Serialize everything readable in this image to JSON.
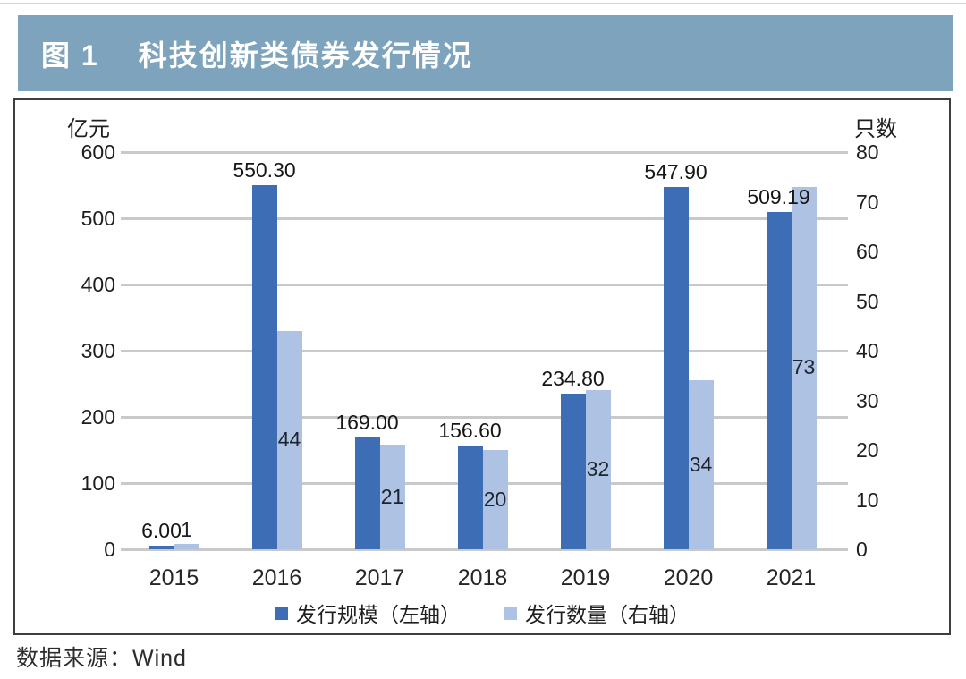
{
  "header": {
    "figure_label": "图 1",
    "title": "科技创新类债券发行情况",
    "bg_color": "#7ea3bd"
  },
  "chart_data": {
    "type": "bar",
    "title": "科技创新类债券发行情况",
    "categories": [
      "2015",
      "2016",
      "2017",
      "2018",
      "2019",
      "2020",
      "2021"
    ],
    "series": [
      {
        "name": "发行规模（左轴）",
        "axis": "left",
        "color": "#3d6db5",
        "values": [
          6.0,
          550.3,
          169.0,
          156.6,
          234.8,
          547.9,
          509.19
        ],
        "labels": [
          "6.00",
          "550.30",
          "169.00",
          "156.60",
          "234.80",
          "547.90",
          "509.19"
        ]
      },
      {
        "name": "发行数量（右轴）",
        "axis": "right",
        "color": "#aec3e3",
        "values": [
          1,
          44,
          21,
          20,
          32,
          34,
          73
        ],
        "labels": [
          "1",
          "44",
          "21",
          "20",
          "32",
          "34",
          "73"
        ]
      }
    ],
    "left_axis": {
      "title": "亿元",
      "min": 0,
      "max": 600,
      "step": 100
    },
    "right_axis": {
      "title": "只数",
      "min": 0,
      "max": 80,
      "step": 10
    },
    "grid": true,
    "gridline_color": "#c9c9c9",
    "legend_position": "bottom"
  },
  "footer": {
    "source": "数据来源：Wind"
  }
}
